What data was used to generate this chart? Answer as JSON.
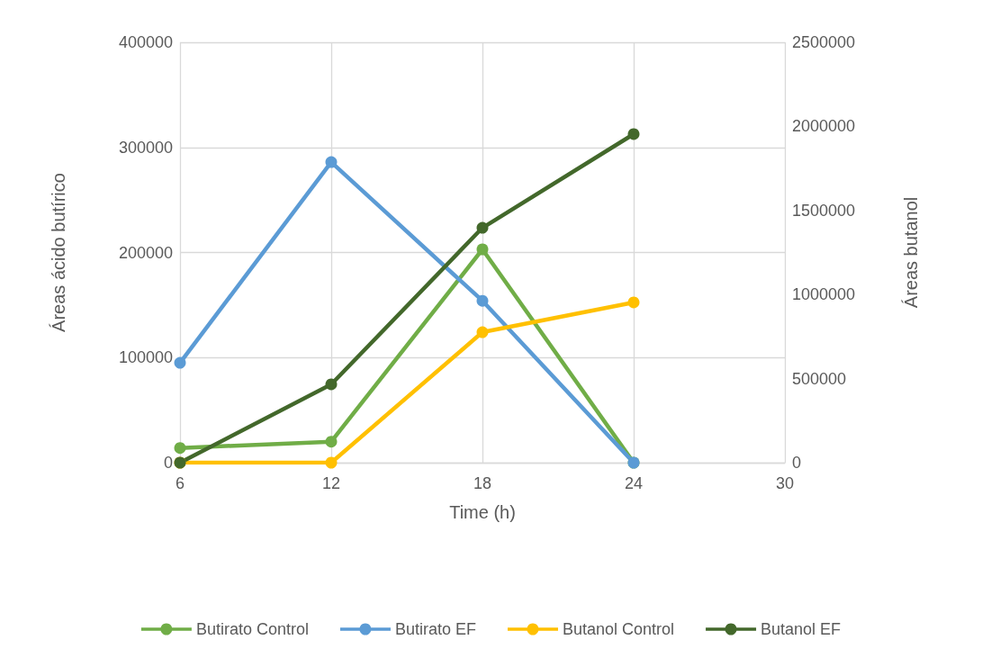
{
  "chart_data": {
    "type": "line",
    "xlabel": "Time (h)",
    "ylabel": "Áreas ácido butírico",
    "y2label": "Áreas butanol",
    "x": [
      6,
      12,
      18,
      24
    ],
    "xlim": [
      6,
      30
    ],
    "xticks": [
      6,
      12,
      18,
      24,
      30
    ],
    "ylim": [
      0,
      400000
    ],
    "yticks": [
      0,
      100000,
      200000,
      300000,
      400000
    ],
    "y2lim": [
      0,
      2500000
    ],
    "y2ticks": [
      0,
      500000,
      1000000,
      1500000,
      2000000,
      2500000
    ],
    "grid": true,
    "legend": "bottom",
    "marker": "circle",
    "line_style": "solid",
    "series": [
      {
        "name": "Butirato Control",
        "color": "#70ad47",
        "values": [
          14000,
          20000,
          203000,
          0
        ]
      },
      {
        "name": "Butirato EF",
        "color": "#5b9bd5",
        "values": [
          95000,
          286000,
          154000,
          0
        ]
      },
      {
        "name": "Butanol Control",
        "color": "#ffc000",
        "axis": "y2",
        "values": [
          0,
          0,
          776000,
          953000
        ]
      },
      {
        "name": "Butanol EF",
        "color": "#43682b",
        "axis": "y2",
        "values": [
          0,
          466000,
          1397000,
          1954000
        ]
      }
    ]
  }
}
